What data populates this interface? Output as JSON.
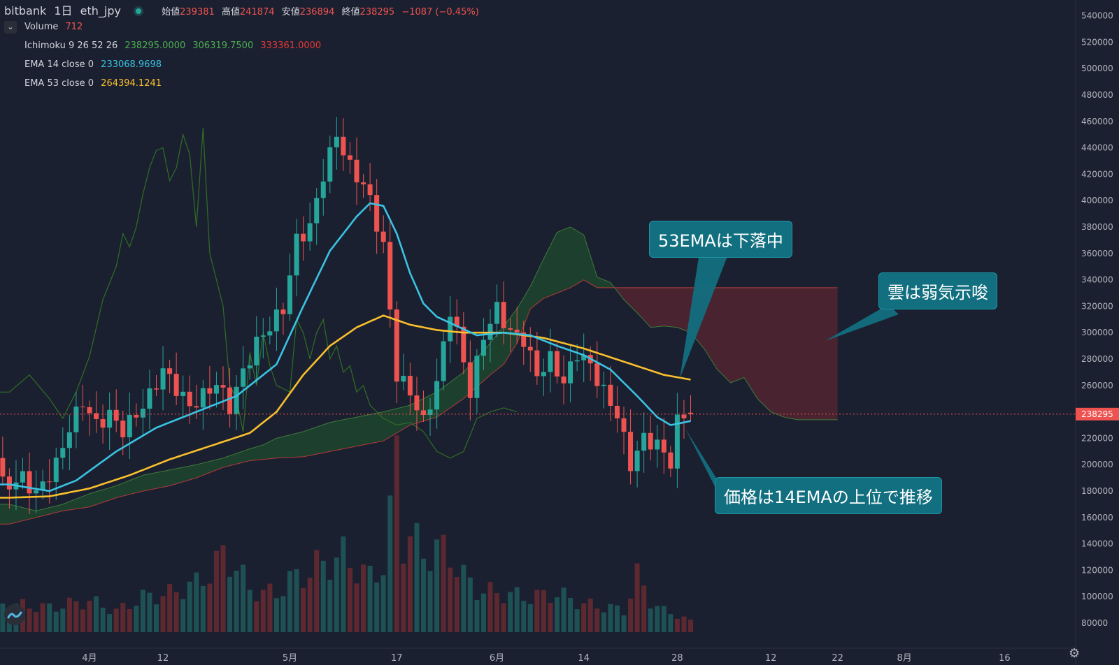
{
  "header": {
    "exchange": "bitbank",
    "interval": "1日",
    "symbol": "eth_jpy",
    "open_label": "始値",
    "open": "239381",
    "high_label": "高値",
    "high": "241874",
    "low_label": "安値",
    "low": "236894",
    "close_label": "終値",
    "close": "238295",
    "change": "−1087 (−0.45%)"
  },
  "indicators": {
    "volume": {
      "label": "Volume",
      "value": "712"
    },
    "ichimoku": {
      "label": "Ichimoku 9 26 52 26",
      "v1": "238295.0000",
      "v2": "306319.7500",
      "v3": "333361.0000"
    },
    "ema14": {
      "label": "EMA 14 close 0",
      "value": "233068.9698"
    },
    "ema53": {
      "label": "EMA 53 close 0",
      "value": "264394.1241"
    }
  },
  "annotations": {
    "ema53_falling": "53EMAは下落中",
    "cloud_bearish": "雲は弱気示唆",
    "price_above_ema14": "価格は14EMAの上位で推移"
  },
  "colors": {
    "up": "#26a69a",
    "down": "#ef5350",
    "ema14": "#3ac3e3",
    "ema53": "#f9bf2d",
    "lagging": "#2e6f24",
    "cloud_bull": "#1f4a2e",
    "cloud_bear": "#5a2630",
    "callout_bg": "#126f80",
    "bg": "#1b2030"
  },
  "icons": [
    "chevron-down-icon",
    "tradingview-logo-icon",
    "gear-icon",
    "status-dot-icon"
  ],
  "chart_data": {
    "type": "candlestick",
    "symbol": "eth_jpy",
    "yaxis_ticks": [
      80000,
      100000,
      120000,
      140000,
      160000,
      180000,
      200000,
      220000,
      240000,
      260000,
      280000,
      300000,
      320000,
      340000,
      360000,
      380000,
      400000,
      420000,
      440000,
      460000,
      480000,
      500000,
      520000,
      540000
    ],
    "ylim": [
      70000,
      550000
    ],
    "current_price": "238295",
    "xaxis_ticks": [
      {
        "label": "4月",
        "day": 0
      },
      {
        "label": "12",
        "day": 11
      },
      {
        "label": "5月",
        "day": 30
      },
      {
        "label": "17",
        "day": 46
      },
      {
        "label": "6月",
        "day": 61
      },
      {
        "label": "14",
        "day": 74
      },
      {
        "label": "28",
        "day": 88
      },
      {
        "label": "12",
        "day": 102
      },
      {
        "label": "22",
        "day": 112
      },
      {
        "label": "8月",
        "day": 122
      },
      {
        "label": "16",
        "day": 137
      }
    ],
    "ohlc_anchors": [
      [
        -12,
        205000,
        185000
      ],
      [
        -10,
        200000,
        190000
      ],
      [
        -8,
        185000,
        178000
      ],
      [
        -7,
        178000,
        185000
      ],
      [
        -5,
        182000,
        200000
      ],
      [
        -3,
        198000,
        228000
      ],
      [
        -1,
        228000,
        248000
      ],
      [
        1,
        248000,
        230000
      ],
      [
        3,
        230000,
        238000
      ],
      [
        5,
        236000,
        226000
      ],
      [
        7,
        226000,
        238000
      ],
      [
        9,
        238000,
        252000
      ],
      [
        11,
        252000,
        272000
      ],
      [
        13,
        272000,
        258000
      ],
      [
        15,
        258000,
        244000
      ],
      [
        17,
        246000,
        252000
      ],
      [
        19,
        252000,
        262000
      ],
      [
        21,
        262000,
        244000
      ],
      [
        23,
        246000,
        270000
      ],
      [
        25,
        270000,
        292000
      ],
      [
        27,
        292000,
        305000
      ],
      [
        29,
        308000,
        318000
      ],
      [
        31,
        320000,
        370000
      ],
      [
        33,
        372000,
        380000
      ],
      [
        35,
        380000,
        420000
      ],
      [
        37,
        420000,
        450000
      ],
      [
        39,
        450000,
        425000
      ],
      [
        41,
        425000,
        412000
      ],
      [
        42,
        412000,
        400000
      ],
      [
        44,
        398000,
        365000
      ],
      [
        46,
        365000,
        268000
      ],
      [
        48,
        270000,
        255000
      ],
      [
        50,
        255000,
        232000
      ],
      [
        52,
        232000,
        262000
      ],
      [
        54,
        262000,
        318000
      ],
      [
        55,
        316000,
        300000
      ],
      [
        57,
        300000,
        255000
      ],
      [
        59,
        258000,
        298000
      ],
      [
        61,
        298000,
        318000
      ],
      [
        63,
        315000,
        300000
      ],
      [
        65,
        300000,
        295000
      ],
      [
        67,
        292000,
        268000
      ],
      [
        69,
        268000,
        280000
      ],
      [
        71,
        280000,
        262000
      ],
      [
        73,
        262000,
        285000
      ],
      [
        75,
        285000,
        275000
      ],
      [
        77,
        275000,
        255000
      ],
      [
        79,
        255000,
        238000
      ],
      [
        81,
        238000,
        200000
      ],
      [
        83,
        202000,
        220000
      ],
      [
        85,
        220000,
        215000
      ],
      [
        87,
        215000,
        202000
      ],
      [
        88,
        204000,
        232000
      ],
      [
        89,
        232000,
        238000
      ],
      [
        90,
        238000,
        238295
      ]
    ],
    "ema14_anchors": [
      [
        -12,
        185000
      ],
      [
        -6,
        180000
      ],
      [
        -2,
        188000
      ],
      [
        4,
        210000
      ],
      [
        10,
        228000
      ],
      [
        16,
        240000
      ],
      [
        22,
        252000
      ],
      [
        28,
        276000
      ],
      [
        32,
        320000
      ],
      [
        36,
        362000
      ],
      [
        40,
        388000
      ],
      [
        42,
        398000
      ],
      [
        44,
        396000
      ],
      [
        46,
        375000
      ],
      [
        48,
        345000
      ],
      [
        50,
        322000
      ],
      [
        52,
        312000
      ],
      [
        55,
        305000
      ],
      [
        58,
        298000
      ],
      [
        62,
        300000
      ],
      [
        66,
        298000
      ],
      [
        70,
        290000
      ],
      [
        74,
        283000
      ],
      [
        78,
        272000
      ],
      [
        82,
        252000
      ],
      [
        85,
        236000
      ],
      [
        87,
        230000
      ],
      [
        89,
        232000
      ],
      [
        90,
        233069
      ]
    ],
    "ema53_anchors": [
      [
        -12,
        175000
      ],
      [
        -6,
        176000
      ],
      [
        0,
        182000
      ],
      [
        6,
        192000
      ],
      [
        12,
        204000
      ],
      [
        18,
        214000
      ],
      [
        24,
        224000
      ],
      [
        28,
        240000
      ],
      [
        32,
        268000
      ],
      [
        36,
        290000
      ],
      [
        40,
        304000
      ],
      [
        44,
        313000
      ],
      [
        48,
        306000
      ],
      [
        52,
        302000
      ],
      [
        56,
        300000
      ],
      [
        62,
        300000
      ],
      [
        68,
        296000
      ],
      [
        74,
        288000
      ],
      [
        80,
        278000
      ],
      [
        86,
        268000
      ],
      [
        90,
        264394
      ]
    ],
    "lagging_span_anchors": [
      [
        -12,
        255000
      ],
      [
        -9,
        268000
      ],
      [
        -6,
        250000
      ],
      [
        -4,
        235000
      ],
      [
        -2,
        255000
      ],
      [
        0,
        282000
      ],
      [
        2,
        325000
      ],
      [
        4,
        350000
      ],
      [
        5,
        375000
      ],
      [
        6,
        365000
      ],
      [
        7,
        380000
      ],
      [
        8,
        405000
      ],
      [
        9,
        425000
      ],
      [
        10,
        438000
      ],
      [
        11,
        440000
      ],
      [
        12,
        415000
      ],
      [
        13,
        425000
      ],
      [
        14,
        450000
      ],
      [
        15,
        435000
      ],
      [
        16,
        380000
      ],
      [
        17,
        455000
      ],
      [
        18,
        360000
      ],
      [
        19,
        340000
      ],
      [
        20,
        320000
      ],
      [
        21,
        260000
      ],
      [
        22,
        250000
      ],
      [
        23,
        225000
      ],
      [
        24,
        285000
      ],
      [
        25,
        260000
      ],
      [
        26,
        300000
      ],
      [
        27,
        275000
      ],
      [
        28,
        260000
      ],
      [
        30,
        255000
      ],
      [
        31,
        310000
      ],
      [
        32,
        300000
      ],
      [
        33,
        280000
      ],
      [
        34,
        300000
      ],
      [
        35,
        310000
      ],
      [
        36,
        280000
      ],
      [
        37,
        290000
      ],
      [
        38,
        270000
      ],
      [
        39,
        275000
      ],
      [
        40,
        255000
      ],
      [
        41,
        260000
      ],
      [
        42,
        245000
      ],
      [
        44,
        235000
      ],
      [
        46,
        230000
      ],
      [
        48,
        232000
      ],
      [
        50,
        225000
      ],
      [
        52,
        210000
      ],
      [
        54,
        205000
      ],
      [
        56,
        210000
      ],
      [
        58,
        235000
      ],
      [
        60,
        240000
      ],
      [
        62,
        243000
      ],
      [
        64,
        240000
      ]
    ],
    "senkou_a_anchors": [
      [
        -12,
        170000
      ],
      [
        -8,
        165000
      ],
      [
        -4,
        170000
      ],
      [
        0,
        178000
      ],
      [
        4,
        184000
      ],
      [
        8,
        192000
      ],
      [
        12,
        196000
      ],
      [
        16,
        200000
      ],
      [
        20,
        205000
      ],
      [
        24,
        212000
      ],
      [
        26,
        215000
      ],
      [
        28,
        220000
      ],
      [
        32,
        225000
      ],
      [
        36,
        232000
      ],
      [
        40,
        236000
      ],
      [
        44,
        240000
      ],
      [
        48,
        245000
      ],
      [
        52,
        255000
      ],
      [
        56,
        270000
      ],
      [
        60,
        292000
      ],
      [
        62,
        305000
      ],
      [
        64,
        318000
      ],
      [
        66,
        335000
      ],
      [
        68,
        356000
      ],
      [
        70,
        376000
      ],
      [
        72,
        380000
      ],
      [
        74,
        374000
      ],
      [
        76,
        342000
      ],
      [
        78,
        338000
      ],
      [
        80,
        325000
      ],
      [
        82,
        315000
      ],
      [
        84,
        304000
      ],
      [
        86,
        305000
      ],
      [
        88,
        304000
      ],
      [
        90,
        300000
      ],
      [
        92,
        288000
      ],
      [
        94,
        272000
      ],
      [
        96,
        262000
      ],
      [
        98,
        266000
      ],
      [
        100,
        250000
      ],
      [
        102,
        240000
      ],
      [
        104,
        236000
      ],
      [
        106,
        234000
      ]
    ],
    "senkou_b_anchors": [
      [
        -12,
        155000
      ],
      [
        -8,
        160000
      ],
      [
        -4,
        165000
      ],
      [
        0,
        168000
      ],
      [
        4,
        175000
      ],
      [
        8,
        180000
      ],
      [
        12,
        184000
      ],
      [
        16,
        190000
      ],
      [
        20,
        198000
      ],
      [
        24,
        203000
      ],
      [
        28,
        205000
      ],
      [
        32,
        206000
      ],
      [
        36,
        210000
      ],
      [
        40,
        214000
      ],
      [
        44,
        218000
      ],
      [
        48,
        230000
      ],
      [
        52,
        236000
      ],
      [
        56,
        250000
      ],
      [
        60,
        268000
      ],
      [
        62,
        276000
      ],
      [
        64,
        292000
      ],
      [
        66,
        318000
      ],
      [
        68,
        326000
      ],
      [
        70,
        330000
      ],
      [
        72,
        334000
      ],
      [
        74,
        340000
      ],
      [
        76,
        334000
      ],
      [
        78,
        334000
      ],
      [
        80,
        334000
      ],
      [
        84,
        334000
      ],
      [
        88,
        334000
      ],
      [
        92,
        334000
      ],
      [
        96,
        334000
      ],
      [
        100,
        334000
      ],
      [
        104,
        334000
      ],
      [
        106,
        334000
      ]
    ],
    "volume_anchors": [
      [
        -12,
        40
      ],
      [
        -6,
        35
      ],
      [
        0,
        45
      ],
      [
        4,
        30
      ],
      [
        8,
        50
      ],
      [
        12,
        55
      ],
      [
        16,
        70
      ],
      [
        18,
        85
      ],
      [
        20,
        110
      ],
      [
        22,
        95
      ],
      [
        24,
        60
      ],
      [
        28,
        55
      ],
      [
        30,
        75
      ],
      [
        32,
        80
      ],
      [
        34,
        95
      ],
      [
        36,
        100
      ],
      [
        38,
        110
      ],
      [
        40,
        90
      ],
      [
        42,
        80
      ],
      [
        44,
        95
      ],
      [
        45,
        160
      ],
      [
        46,
        260
      ],
      [
        47,
        130
      ],
      [
        48,
        140
      ],
      [
        50,
        110
      ],
      [
        52,
        120
      ],
      [
        54,
        110
      ],
      [
        56,
        80
      ],
      [
        58,
        60
      ],
      [
        62,
        55
      ],
      [
        66,
        50
      ],
      [
        70,
        55
      ],
      [
        74,
        40
      ],
      [
        78,
        35
      ],
      [
        80,
        30
      ],
      [
        82,
        80
      ],
      [
        84,
        45
      ],
      [
        86,
        30
      ],
      [
        88,
        25
      ],
      [
        90,
        15
      ]
    ]
  }
}
